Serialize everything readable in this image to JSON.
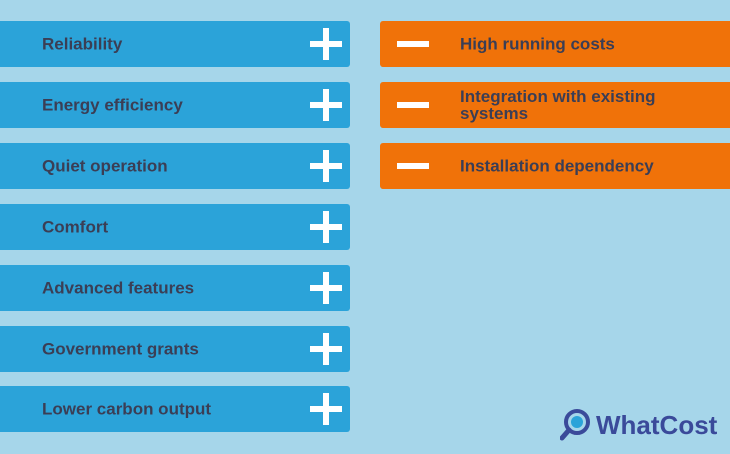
{
  "pros": [
    {
      "label": "Reliability",
      "icon": "plus-icon"
    },
    {
      "label": "Energy efficiency",
      "icon": "plus-icon"
    },
    {
      "label": "Quiet operation",
      "icon": "plus-icon"
    },
    {
      "label": "Comfort",
      "icon": "plus-icon"
    },
    {
      "label": "Advanced features",
      "icon": "plus-icon"
    },
    {
      "label": "Government grants",
      "icon": "plus-icon"
    },
    {
      "label": "Lower carbon output",
      "icon": "plus-icon"
    }
  ],
  "cons": [
    {
      "label": "High running costs",
      "icon": "minus-icon"
    },
    {
      "label": "Integration with existing\nsystems",
      "icon": "minus-icon"
    },
    {
      "label": "Installation dependency",
      "icon": "minus-icon"
    }
  ],
  "logo": {
    "text": "WhatCost",
    "icon": "magnifier-icon"
  },
  "colors": {
    "background": "#a6d6ea",
    "pro": "#2ba3d9",
    "con": "#f07209",
    "text": "#3b3e55",
    "brand": "#3a4a9a"
  }
}
